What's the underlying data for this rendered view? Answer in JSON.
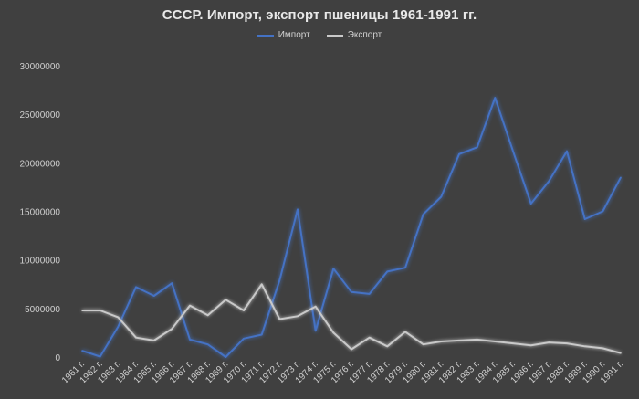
{
  "chart_data": {
    "type": "line",
    "title": "СССР. Импорт, экспорт пшеницы 1961-1991 гг.",
    "xlabel": "",
    "ylabel": "",
    "categories": [
      "1961 г.",
      "1962 г.",
      "1963 г.",
      "1964 г.",
      "1965 г.",
      "1966 г.",
      "1967 г.",
      "1968 г.",
      "1969 г.",
      "1970 г.",
      "1971 г.",
      "1972 г.",
      "1973 г.",
      "1974 г.",
      "1975 г.",
      "1976 г.",
      "1977 г.",
      "1978 г.",
      "1979 г.",
      "1980 г.",
      "1981 г.",
      "1982 г.",
      "1983 г.",
      "1984 г.",
      "1985 г.",
      "1986 г.",
      "1987 г.",
      "1988 г.",
      "1989 г.",
      "1990 г.",
      "1991 г."
    ],
    "series": [
      {
        "name": "Импорт",
        "color": "#4472c4",
        "values": [
          650000,
          50000,
          3100000,
          7200000,
          6300000,
          7600000,
          1800000,
          1300000,
          0,
          1900000,
          2300000,
          7900000,
          15200000,
          2700000,
          9100000,
          6700000,
          6500000,
          8800000,
          9200000,
          14700000,
          16500000,
          20900000,
          21600000,
          26700000,
          21200000,
          15800000,
          18100000,
          21200000,
          14200000,
          15000000,
          18500000
        ]
      },
      {
        "name": "Экспорт",
        "color": "#c9c9c9",
        "values": [
          4800000,
          4800000,
          4100000,
          2000000,
          1700000,
          2900000,
          5300000,
          4300000,
          5900000,
          4800000,
          7500000,
          3900000,
          4200000,
          5200000,
          2500000,
          800000,
          2000000,
          1100000,
          2600000,
          1300000,
          1600000,
          1700000,
          1800000,
          1600000,
          1400000,
          1200000,
          1500000,
          1400000,
          1100000,
          900000,
          400000
        ]
      }
    ],
    "ylim": [
      0,
      30000000
    ],
    "yticks": [
      "0",
      "5000000",
      "10000000",
      "15000000",
      "20000000",
      "25000000",
      "30000000"
    ],
    "grid": false,
    "legend_position": "top"
  }
}
